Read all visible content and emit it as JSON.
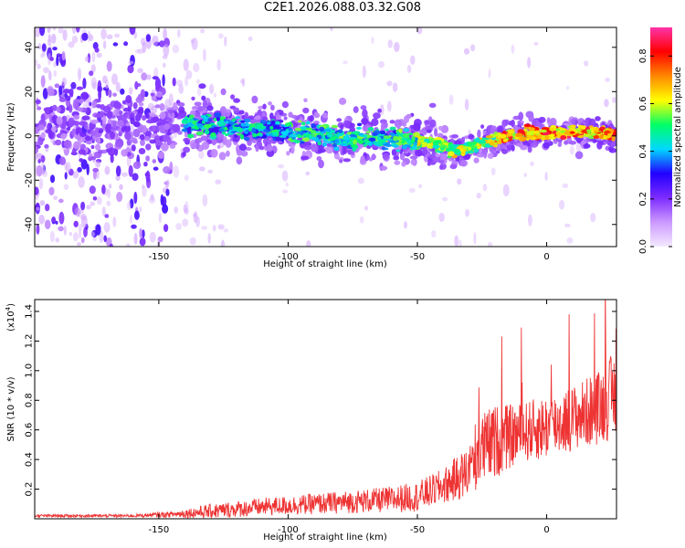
{
  "title": "C2E1.2026.088.03.32.G08",
  "chart_data": [
    {
      "type": "heatmap",
      "title": "C2E1.2026.088.03.32.G08",
      "xlabel": "Height of straight line (km)",
      "ylabel": "Frequency (Hz)",
      "xlim": [
        -198,
        27
      ],
      "ylim": [
        -50,
        49
      ],
      "xticks": [
        -150,
        -100,
        -50,
        0
      ],
      "xtick_labels": [
        "-150",
        "-100",
        "-50",
        "0"
      ],
      "yticks": [
        -40,
        -20,
        0,
        20,
        40
      ],
      "ytick_labels": [
        "-40",
        "-20",
        "0",
        "20",
        "40"
      ],
      "ridge": {
        "description": "dominant frequency band vs height",
        "x": [
          -198,
          -150,
          -130,
          -100,
          -75,
          -50,
          -40,
          -35,
          -25,
          -10,
          0,
          10,
          27
        ],
        "y": [
          5,
          5,
          5,
          2,
          -1,
          -2,
          -4,
          -7,
          -3,
          1,
          1,
          2,
          1
        ]
      },
      "colorbar": {
        "label": "Normalized spectral amplitude",
        "range": [
          0,
          0.92
        ],
        "ticks": [
          0.0,
          0.2,
          0.4,
          0.6,
          0.8
        ],
        "tick_labels": [
          "0.0",
          "0.2",
          "0.4",
          "0.6",
          "0.8"
        ],
        "colors": [
          "#f4eaff",
          "#cc99ff",
          "#7d2cff",
          "#2200ff",
          "#00d8ff",
          "#00ff66",
          "#ffff00",
          "#ff8800",
          "#ff0000",
          "#ff33aa"
        ]
      }
    },
    {
      "type": "line",
      "xlabel": "Height of straight line (km)",
      "ylabel": "SNR (10 * v/v)",
      "multiplier_label": "(x10",
      "multiplier_exponent": "4",
      "multiplier_close": ")",
      "xlim": [
        -198,
        27
      ],
      "ylim": [
        0,
        1.48
      ],
      "xticks": [
        -150,
        -100,
        -50,
        0
      ],
      "xtick_labels": [
        "-150",
        "-100",
        "-50",
        "0"
      ],
      "yticks": [
        0.2,
        0.4,
        0.6,
        0.8,
        1.0,
        1.2,
        1.4
      ],
      "ytick_labels": [
        "0.2",
        "0.4",
        "0.6",
        "0.8",
        "1.0",
        "1.2",
        "1.4"
      ],
      "series": [
        {
          "name": "SNR",
          "color": "#ee3333",
          "envelope_x": [
            -198,
            -160,
            -145,
            -130,
            -110,
            -90,
            -70,
            -60,
            -50,
            -40,
            -30,
            -27,
            -20,
            -15,
            -10,
            0,
            10,
            20,
            27
          ],
          "envelope_mean": [
            0.02,
            0.02,
            0.03,
            0.05,
            0.08,
            0.1,
            0.12,
            0.13,
            0.15,
            0.22,
            0.32,
            0.45,
            0.52,
            0.55,
            0.58,
            0.62,
            0.68,
            0.75,
            0.85
          ],
          "envelope_spread": [
            0.01,
            0.01,
            0.02,
            0.05,
            0.06,
            0.07,
            0.08,
            0.09,
            0.1,
            0.12,
            0.18,
            0.25,
            0.25,
            0.22,
            0.2,
            0.22,
            0.22,
            0.25,
            0.3
          ]
        }
      ]
    }
  ]
}
